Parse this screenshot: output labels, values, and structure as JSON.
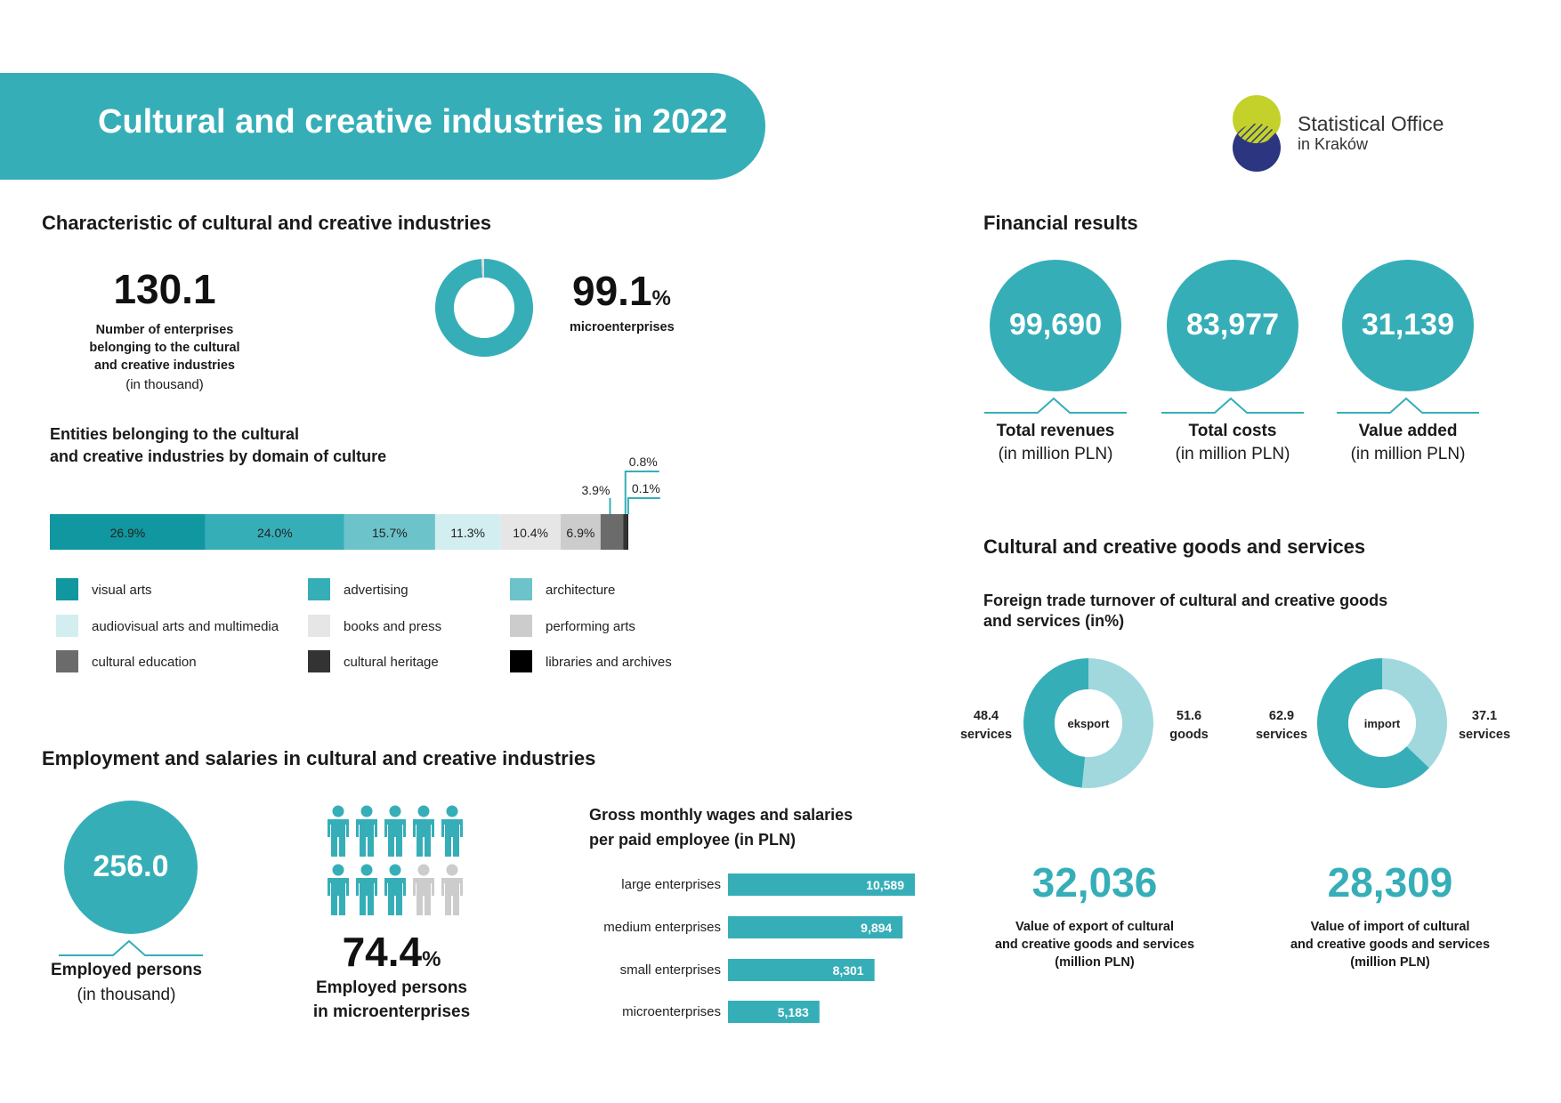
{
  "header": {
    "title": "Cultural and creative industries in 2022",
    "logo_line1": "Statistical Office",
    "logo_line2": "in Kraków"
  },
  "characteristic": {
    "heading": "Characteristic of cultural and creative industries",
    "enterprises_value": "130.1",
    "enterprises_label_1": "Number of enterprises",
    "enterprises_label_2": "belonging to the cultural",
    "enterprises_label_3": "and creative industries",
    "enterprises_unit": "(in thousand)",
    "micro_value": "99.1",
    "micro_unit": "%",
    "micro_label": "microenterprises"
  },
  "domains": {
    "heading_1": "Entities belonging to the cultural",
    "heading_2": "and creative industries by domain of culture"
  },
  "employment": {
    "heading": "Employment and salaries in cultural and creative industries",
    "employed_value": "256.0",
    "employed_label": "Employed persons",
    "employed_unit": "(in thousand)",
    "micro_share_value": "74.4",
    "micro_share_unit": "%",
    "micro_share_label_1": "Employed persons",
    "micro_share_label_2": "in microenterprises",
    "wages_heading_1": "Gross monthly wages and salaries",
    "wages_heading_2": "per paid employee (in PLN)"
  },
  "financial": {
    "heading": "Financial results",
    "items": [
      {
        "value": "99,690",
        "label": "Total revenues",
        "unit": "(in million PLN)"
      },
      {
        "value": "83,977",
        "label": "Total costs",
        "unit": "(in million PLN)"
      },
      {
        "value": "31,139",
        "label": "Value added",
        "unit": "(in million PLN)"
      }
    ]
  },
  "goods": {
    "heading": "Cultural and creative goods and services",
    "trade_heading_1": "Foreign trade turnover of cultural and creative goods",
    "trade_heading_2": "and services (in%)",
    "export_value": "32,036",
    "export_label_1": "Value of export of cultural",
    "export_label_2": "and creative goods and services",
    "export_label_3": "(million PLN)",
    "import_value": "28,309",
    "import_label_1": "Value of import of cultural",
    "import_label_2": "and creative goods and services",
    "import_label_3": "(million PLN)"
  },
  "colors": {
    "teal": "#36aeb8",
    "teal_light": "#a0d8de",
    "logo_green": "#c3d12a",
    "logo_navy": "#2b3580"
  },
  "chart_data": [
    {
      "type": "pie",
      "title": "",
      "labels": [
        "microenterprises",
        "other"
      ],
      "values": [
        99.1,
        0.9
      ]
    },
    {
      "type": "bar",
      "orientation": "horizontal-stacked",
      "title": "Entities belonging to the cultural and creative industries by domain of culture",
      "unit": "%",
      "categories": [
        "visual arts",
        "advertising",
        "architecture",
        "audiovisual arts and multimedia",
        "books and press",
        "performing arts",
        "cultural education",
        "cultural heritage",
        "libraries and archives"
      ],
      "values": [
        26.9,
        24.0,
        15.7,
        11.3,
        10.4,
        6.9,
        3.9,
        0.8,
        0.1
      ],
      "value_labels": [
        "26.9%",
        "24.0%",
        "15.7%",
        "11.3%",
        "10.4%",
        "6.9%",
        "3.9%",
        "0.8%",
        "0.1%"
      ],
      "colors": [
        "#11979f",
        "#36aeb8",
        "#6cc3ca",
        "#d3eef0",
        "#e6e6e6",
        "#cccccc",
        "#6b6b6b",
        "#333333",
        "#000000"
      ],
      "legend": "bottom"
    },
    {
      "type": "bar",
      "orientation": "horizontal",
      "title": "Gross monthly wages and salaries per paid employee (in PLN)",
      "categories": [
        "large enterprises",
        "medium enterprises",
        "small enterprises",
        "microenterprises"
      ],
      "values": [
        10589,
        9894,
        8301,
        5183
      ],
      "value_labels": [
        "10,589",
        "9,894",
        "8,301",
        "5,183"
      ],
      "xlim": [
        0,
        10589
      ]
    },
    {
      "type": "pie",
      "title": "eksport",
      "labels": [
        "services",
        "goods"
      ],
      "values": [
        48.4,
        51.6
      ],
      "value_labels": [
        "48.4",
        "51.6"
      ]
    },
    {
      "type": "pie",
      "title": "import",
      "labels": [
        "services",
        "services"
      ],
      "values": [
        62.9,
        37.1
      ],
      "value_labels": [
        "62.9",
        "37.1"
      ]
    },
    {
      "type": "pictogram",
      "title": "",
      "labels": [
        "in microenterprises",
        "other"
      ],
      "values": [
        74.4,
        25.6
      ],
      "icons_total": 10,
      "icons_highlighted": 8
    }
  ]
}
